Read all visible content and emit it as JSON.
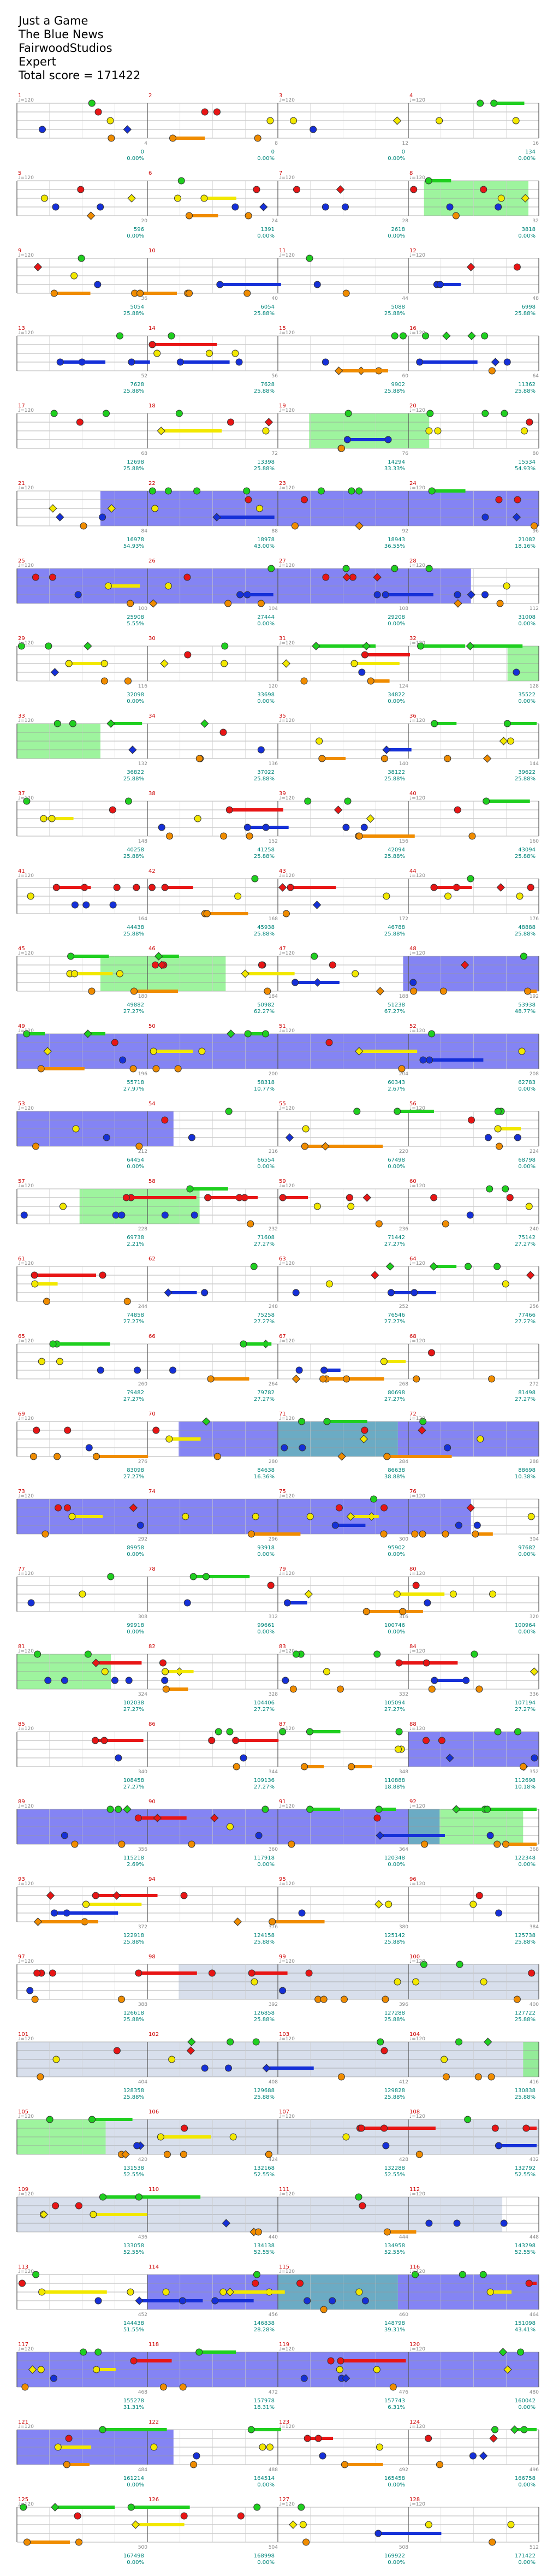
{
  "header": {
    "song_title": "Just a Game",
    "artist": "The Blue News",
    "charter": "FairwoodStudios",
    "difficulty": "Expert",
    "total_score_text": "Total score = 171422"
  },
  "colors": {
    "green": "#1fcf1f",
    "red": "#e81515",
    "yellow": "#f2e800",
    "blue": "#1530d8",
    "orange": "#f08c00",
    "star_power": "#5b5bf0",
    "solo": "#7ef07e",
    "solo_overlap": "#3a8fb0",
    "section_tint": "#b8c4dc",
    "measure_number": "#cc0000",
    "score_text": "#00857a",
    "tick_text": "#888888"
  },
  "rows": [
    {
      "measures": [
        1,
        2,
        3,
        4
      ],
      "tempos": [
        "120",
        "",
        "120",
        "120"
      ],
      "scores": [
        "0",
        "0",
        "0",
        "134"
      ],
      "pcts": [
        "0.00%",
        "0.00%",
        "0.00%",
        "0.00%"
      ]
    },
    {
      "measures": [
        5,
        6,
        7,
        8
      ],
      "tempos": [
        "120",
        "",
        "120",
        "120"
      ],
      "scores": [
        "596",
        "1391",
        "2618",
        "3818"
      ],
      "pcts": [
        "0.00%",
        "0.00%",
        "0.00%",
        "0.00%"
      ]
    },
    {
      "measures": [
        9,
        10,
        11,
        12
      ],
      "tempos": [
        "120",
        "",
        "120",
        "120"
      ],
      "scores": [
        "5054",
        "6054",
        "5088",
        "6998"
      ],
      "pcts": [
        "25.88%",
        "25.88%",
        "25.88%",
        "25.88%"
      ]
    },
    {
      "measures": [
        13,
        14,
        15,
        16
      ],
      "tempos": [
        "120",
        "",
        "120",
        "120"
      ],
      "scores": [
        "7628",
        "7628",
        "9902",
        "11362"
      ],
      "pcts": [
        "25.88%",
        "25.88%",
        "25.88%",
        "25.88%"
      ]
    },
    {
      "measures": [
        17,
        18,
        19,
        20
      ],
      "tempos": [
        "120",
        "",
        "120",
        "120"
      ],
      "scores": [
        "12698",
        "13398",
        "14294",
        "15534"
      ],
      "pcts": [
        "25.88%",
        "25.88%",
        "33.33%",
        "54.93%"
      ]
    },
    {
      "measures": [
        21,
        22,
        23,
        24
      ],
      "tempos": [
        "120",
        "",
        "120",
        "120"
      ],
      "scores": [
        "16978",
        "18978",
        "18943",
        "21082"
      ],
      "pcts": [
        "54.93%",
        "43.00%",
        "36.55%",
        "18.16%"
      ]
    },
    {
      "measures": [
        25,
        26,
        27,
        28
      ],
      "tempos": [
        "120",
        "",
        "120",
        "120"
      ],
      "scores": [
        "25908",
        "27444",
        "29208",
        "31008"
      ],
      "pcts": [
        "5.55%",
        "0.00%",
        "0.00%",
        "0.00%"
      ]
    },
    {
      "measures": [
        29,
        30,
        31,
        32
      ],
      "tempos": [
        "120",
        "",
        "120",
        "120"
      ],
      "scores": [
        "32098",
        "33698",
        "34822",
        "35522"
      ],
      "pcts": [
        "0.00%",
        "0.00%",
        "0.00%",
        "0.00%"
      ]
    },
    {
      "measures": [
        33,
        34,
        35,
        36
      ],
      "tempos": [
        "120",
        "",
        "120",
        "120"
      ],
      "scores": [
        "36822",
        "37022",
        "38122",
        "39622"
      ],
      "pcts": [
        "25.88%",
        "25.88%",
        "25.88%",
        "25.88%"
      ]
    },
    {
      "measures": [
        37,
        38,
        39,
        40
      ],
      "tempos": [
        "120",
        "",
        "120",
        "120"
      ],
      "scores": [
        "40258",
        "41258",
        "42094",
        "43094"
      ],
      "pcts": [
        "25.88%",
        "25.88%",
        "25.88%",
        "25.88%"
      ]
    },
    {
      "measures": [
        41,
        42,
        43,
        44
      ],
      "tempos": [
        "120",
        "",
        "120",
        "120"
      ],
      "scores": [
        "44438",
        "45938",
        "46788",
        "48888"
      ],
      "pcts": [
        "25.88%",
        "25.88%",
        "25.88%",
        "25.88%"
      ]
    },
    {
      "measures": [
        45,
        46,
        47,
        48
      ],
      "tempos": [
        "120",
        "",
        "120",
        "120"
      ],
      "scores": [
        "49882",
        "50982",
        "51238",
        "53938"
      ],
      "pcts": [
        "27.27%",
        "62.27%",
        "67.27%",
        "48.77%"
      ]
    },
    {
      "measures": [
        49,
        50,
        51,
        52
      ],
      "tempos": [
        "120",
        "",
        "120",
        "120"
      ],
      "scores": [
        "55718",
        "58318",
        "60343",
        "62783"
      ],
      "pcts": [
        "27.97%",
        "10.77%",
        "2.67%",
        "0.00%"
      ]
    },
    {
      "measures": [
        53,
        54,
        55,
        56
      ],
      "tempos": [
        "120",
        "",
        "120",
        "120"
      ],
      "scores": [
        "64454",
        "66554",
        "67498",
        "68798"
      ],
      "pcts": [
        "0.00%",
        "0.00%",
        "0.00%",
        "0.00%"
      ]
    },
    {
      "measures": [
        57,
        58,
        59,
        60
      ],
      "tempos": [
        "120",
        "",
        "120",
        "120"
      ],
      "scores": [
        "69738",
        "71608",
        "71442",
        "75142"
      ],
      "pcts": [
        "2.21%",
        "27.27%",
        "27.27%",
        "27.27%"
      ]
    },
    {
      "measures": [
        61,
        62,
        63,
        64
      ],
      "tempos": [
        "120",
        "",
        "120",
        "120"
      ],
      "scores": [
        "74858",
        "75258",
        "76546",
        "77466"
      ],
      "pcts": [
        "27.27%",
        "27.27%",
        "27.27%",
        "27.27%"
      ]
    },
    {
      "measures": [
        65,
        66,
        67,
        68
      ],
      "tempos": [
        "120",
        "",
        "120",
        "120"
      ],
      "scores": [
        "79482",
        "79782",
        "80698",
        "81498"
      ],
      "pcts": [
        "27.27%",
        "27.27%",
        "27.27%",
        "27.27%"
      ]
    },
    {
      "measures": [
        69,
        70,
        71,
        72
      ],
      "tempos": [
        "120",
        "",
        "120",
        "120"
      ],
      "scores": [
        "83098",
        "84638",
        "86638",
        "88698"
      ],
      "pcts": [
        "27.27%",
        "16.36%",
        "38.88%",
        "10.38%"
      ]
    },
    {
      "measures": [
        73,
        74,
        75,
        76
      ],
      "tempos": [
        "120",
        "",
        "120",
        "120"
      ],
      "scores": [
        "89958",
        "93918",
        "95902",
        "97682"
      ],
      "pcts": [
        "0.00%",
        "0.00%",
        "0.00%",
        "0.00%"
      ]
    },
    {
      "measures": [
        77,
        78,
        79,
        80
      ],
      "tempos": [
        "120",
        "",
        "120",
        "120"
      ],
      "scores": [
        "99918",
        "99661",
        "100746",
        "100964"
      ],
      "pcts": [
        "0.00%",
        "0.00%",
        "0.00%",
        "0.00%"
      ]
    },
    {
      "measures": [
        81,
        82,
        83,
        84
      ],
      "tempos": [
        "120",
        "",
        "120",
        "120"
      ],
      "scores": [
        "102038",
        "104406",
        "105094",
        "107194"
      ],
      "pcts": [
        "27.27%",
        "27.27%",
        "27.27%",
        "27.27%"
      ]
    },
    {
      "measures": [
        85,
        86,
        87,
        88
      ],
      "tempos": [
        "120",
        "",
        "120",
        "120"
      ],
      "scores": [
        "108458",
        "109136",
        "110888",
        "112698"
      ],
      "pcts": [
        "27.27%",
        "27.27%",
        "18.88%",
        "10.18%"
      ]
    },
    {
      "measures": [
        89,
        90,
        91,
        92
      ],
      "tempos": [
        "120",
        "",
        "120",
        "120"
      ],
      "scores": [
        "115218",
        "117918",
        "120348",
        "122348"
      ],
      "pcts": [
        "2.69%",
        "0.00%",
        "0.00%",
        "0.00%"
      ]
    },
    {
      "measures": [
        93,
        94,
        95,
        96
      ],
      "tempos": [
        "120",
        "",
        "120",
        "120"
      ],
      "scores": [
        "122918",
        "124158",
        "125142",
        "125738"
      ],
      "pcts": [
        "25.88%",
        "25.88%",
        "25.88%",
        "25.88%"
      ]
    },
    {
      "measures": [
        97,
        98,
        99,
        100
      ],
      "tempos": [
        "120",
        "",
        "120",
        "120"
      ],
      "scores": [
        "126618",
        "126858",
        "127288",
        "127722"
      ],
      "pcts": [
        "25.88%",
        "25.88%",
        "25.88%",
        "25.88%"
      ]
    },
    {
      "measures": [
        101,
        102,
        103,
        104
      ],
      "tempos": [
        "120",
        "",
        "120",
        "120"
      ],
      "scores": [
        "128358",
        "129688",
        "129828",
        "130838"
      ],
      "pcts": [
        "25.88%",
        "25.88%",
        "25.88%",
        "25.88%"
      ]
    },
    {
      "measures": [
        105,
        106,
        107,
        108
      ],
      "tempos": [
        "120",
        "",
        "120",
        "120"
      ],
      "scores": [
        "131538",
        "132168",
        "132288",
        "132792"
      ],
      "pcts": [
        "52.55%",
        "52.55%",
        "52.55%",
        "52.55%"
      ]
    },
    {
      "measures": [
        109,
        110,
        111,
        112
      ],
      "tempos": [
        "120",
        "",
        "120",
        "120"
      ],
      "scores": [
        "133058",
        "134138",
        "134958",
        "143298"
      ],
      "pcts": [
        "52.55%",
        "52.55%",
        "52.55%",
        "52.55%"
      ]
    },
    {
      "measures": [
        113,
        114,
        115,
        116
      ],
      "tempos": [
        "120",
        "",
        "120",
        "120"
      ],
      "scores": [
        "144438",
        "146838",
        "148798",
        "151098"
      ],
      "pcts": [
        "51.55%",
        "28.28%",
        "39.31%",
        "43.41%"
      ]
    },
    {
      "measures": [
        117,
        118,
        119,
        120
      ],
      "tempos": [
        "120",
        "",
        "120",
        "120"
      ],
      "scores": [
        "155278",
        "157978",
        "157743",
        "160042"
      ],
      "pcts": [
        "31.31%",
        "18.31%",
        "6.31%",
        "0.00%"
      ]
    },
    {
      "measures": [
        121,
        122,
        123,
        124
      ],
      "tempos": [
        "120",
        "",
        "120",
        "120"
      ],
      "scores": [
        "161214",
        "164514",
        "165458",
        "166758"
      ],
      "pcts": [
        "0.00%",
        "0.00%",
        "0.00%",
        "0.00%"
      ]
    },
    {
      "measures": [
        125,
        126,
        127,
        128
      ],
      "tempos": [
        "120",
        "",
        "120",
        "120"
      ],
      "scores": [
        "167498",
        "168998",
        "169922",
        "171422"
      ],
      "pcts": [
        "0.00%",
        "0.00%",
        "0.00%",
        "0.00%"
      ]
    }
  ]
}
